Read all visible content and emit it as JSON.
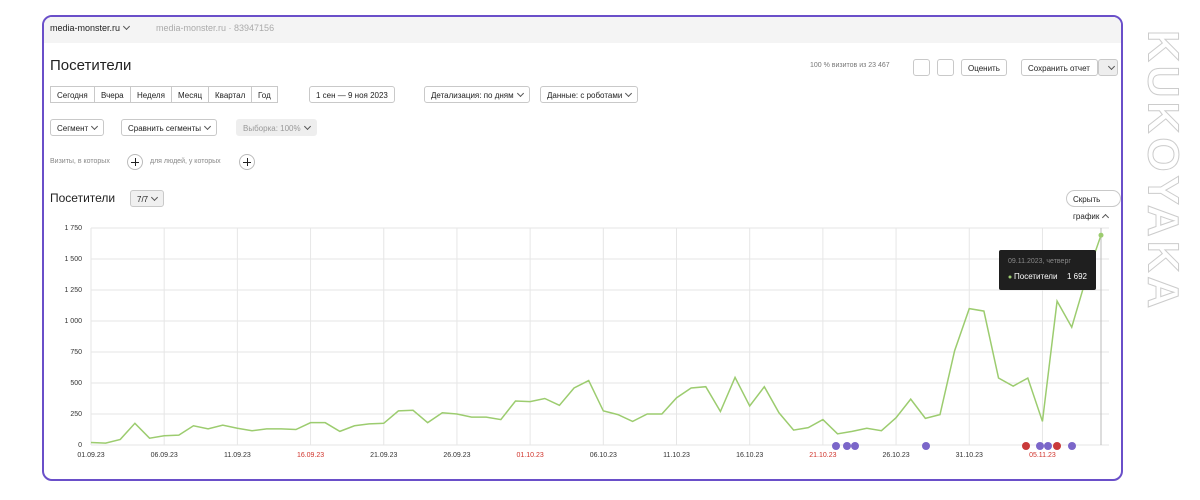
{
  "header": {
    "site": "media-monster.ru",
    "counter": "media-monster.ru · 83947156"
  },
  "report": {
    "title": "Посетители",
    "visits_share": "100 % визитов из 23 467",
    "rate": "Оценить",
    "save": "Сохранить отчет"
  },
  "periods": [
    "Сегодня",
    "Вчера",
    "Неделя",
    "Месяц",
    "Квартал",
    "Год"
  ],
  "date_range": "1 сен — 9 ноя 2023",
  "detail": "Детализация: по дням",
  "robots": "Данные: с роботами",
  "segment": "Сегмент",
  "compare": "Сравнить сегменты",
  "sample": "Выборка: 100%",
  "filter_visits": "Визиты, в которых",
  "filter_people": "для людей, у которых",
  "chart_panel": {
    "title": "Посетители",
    "metrics": "7/7",
    "hide": "Скрыть график"
  },
  "watermark": "KUKOYAKA",
  "chart_data": {
    "type": "line",
    "categories": [
      "01.09.23",
      null,
      null,
      null,
      null,
      "06.09.23",
      null,
      null,
      null,
      null,
      "11.09.23",
      null,
      null,
      null,
      null,
      "16.09.23",
      null,
      null,
      null,
      null,
      "21.09.23",
      null,
      null,
      null,
      null,
      "26.09.23",
      null,
      null,
      null,
      null,
      "01.10.23",
      null,
      null,
      null,
      null,
      "06.10.23",
      null,
      null,
      null,
      null,
      "11.10.23",
      null,
      null,
      null,
      null,
      "16.10.23",
      null,
      null,
      null,
      null,
      "21.10.23",
      null,
      null,
      null,
      null,
      "26.10.23",
      null,
      null,
      null,
      null,
      "31.10.23",
      null,
      null,
      null,
      null,
      "05.11.23",
      null,
      null,
      null,
      null
    ],
    "series": [
      {
        "name": "Посетители",
        "color": "#9ccc6f",
        "values": [
          20,
          15,
          45,
          175,
          55,
          75,
          80,
          155,
          130,
          160,
          135,
          115,
          130,
          130,
          125,
          180,
          180,
          110,
          155,
          170,
          175,
          275,
          280,
          180,
          260,
          250,
          225,
          225,
          205,
          355,
          350,
          375,
          320,
          460,
          520,
          275,
          245,
          190,
          250,
          250,
          380,
          460,
          470,
          270,
          545,
          315,
          470,
          260,
          120,
          140,
          205,
          90,
          110,
          135,
          115,
          220,
          370,
          215,
          245,
          760,
          1100,
          1080,
          540,
          475,
          540,
          190,
          1160,
          950,
          1350,
          1692
        ]
      }
    ],
    "ylim": [
      0,
      1750
    ],
    "yticks": [
      0,
      250,
      500,
      750,
      {
        "value": 1000,
        "label": "1 000"
      },
      {
        "value": 1250,
        "label": "1 250"
      },
      {
        "value": 1500,
        "label": "1 500"
      },
      {
        "value": 1750,
        "label": "1 750"
      }
    ],
    "grid": true,
    "weekend_label_color": "#d0342c",
    "tooltip": {
      "date": "09.11.2023, четверг",
      "value_label": "1 692"
    }
  }
}
